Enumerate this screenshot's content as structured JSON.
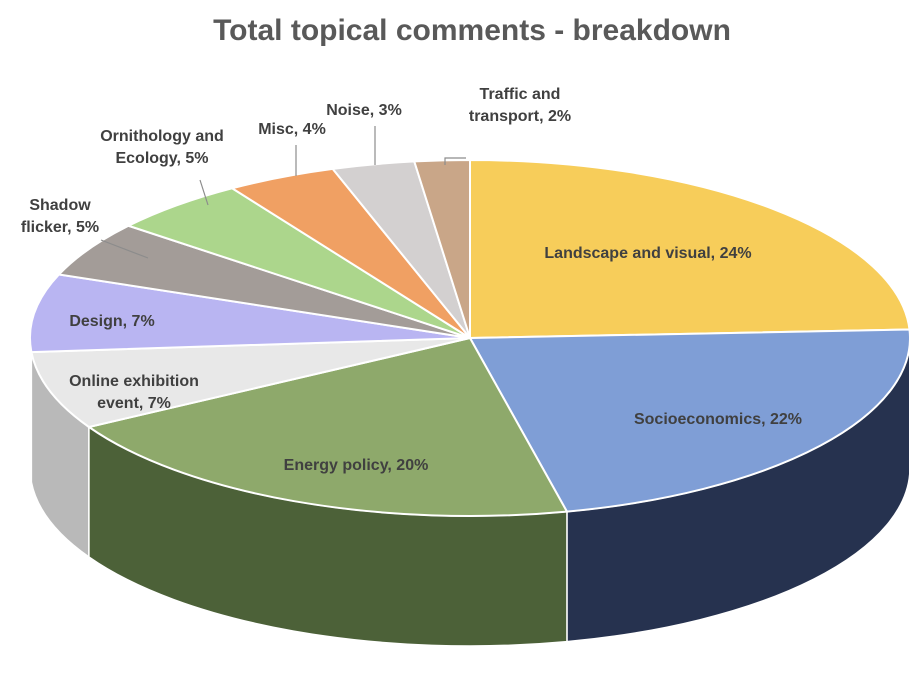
{
  "chart_data": {
    "type": "pie",
    "style": "3d",
    "title": "Total topical comments - breakdown",
    "unit": "%",
    "slices": [
      {
        "label": "Landscape and visual",
        "value": 24,
        "display": "Landscape and visual, 24%",
        "color": "#f7cd5a",
        "dark": "#b08f2a",
        "label_color": "#404040",
        "label_position": "inside"
      },
      {
        "label": "Socioeconomics",
        "value": 22,
        "display": "Socioeconomics, 22%",
        "color": "#7f9ed6",
        "dark": "#26324f",
        "label_color": "#404040",
        "label_position": "inside"
      },
      {
        "label": "Energy policy",
        "value": 20,
        "display": "Energy policy, 20%",
        "color": "#8ea96b",
        "dark": "#4c6138",
        "label_color": "#404040",
        "label_position": "inside"
      },
      {
        "label": "Online exhibition event",
        "value": 7,
        "display": "Online exhibition event, 7%",
        "color": "#e8e8e8",
        "dark": "#b9b9b9",
        "label_color": "#404040",
        "label_position": "inside"
      },
      {
        "label": "Design",
        "value": 7,
        "display": "Design, 7%",
        "color": "#b9b5f2",
        "dark": "#8580c4",
        "label_color": "#404040",
        "label_position": "inside"
      },
      {
        "label": "Shadow flicker",
        "value": 5,
        "display": "Shadow flicker, 5%",
        "color": "#a39c98",
        "dark": "#6f6966",
        "label_color": "#404040",
        "label_position": "outside"
      },
      {
        "label": "Ornithology and Ecology",
        "value": 5,
        "display": "Ornithology and Ecology, 5%",
        "color": "#acd68c",
        "dark": "#76a05a",
        "label_color": "#404040",
        "label_position": "outside"
      },
      {
        "label": "Misc",
        "value": 4,
        "display": "Misc, 4%",
        "color": "#f0a063",
        "dark": "#b46c38",
        "label_color": "#404040",
        "label_position": "outside"
      },
      {
        "label": "Noise",
        "value": 3,
        "display": "Noise, 3%",
        "color": "#d3d0d0",
        "dark": "#9c9898",
        "label_color": "#404040",
        "label_position": "outside"
      },
      {
        "label": "Traffic and transport",
        "value": 2,
        "display": "Traffic and transport, 2%",
        "color": "#c9a688",
        "dark": "#93755a",
        "label_color": "#404040",
        "label_position": "outside"
      }
    ]
  }
}
